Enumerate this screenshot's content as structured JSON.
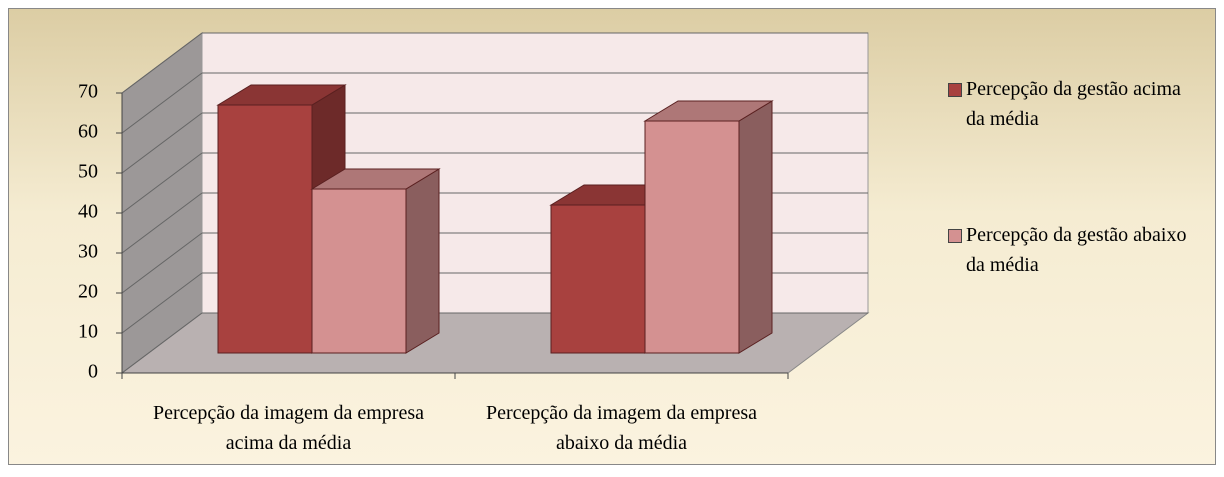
{
  "chart_data": {
    "type": "bar3d",
    "categories": [
      "Percepção da imagem da empresa acima da média",
      "Percepção da imagem da empresa abaixo da média"
    ],
    "series": [
      {
        "name": "Percepção da gestão acima da média",
        "color": "#a8413f",
        "values": [
          62,
          37
        ]
      },
      {
        "name": "Percepção da gestão abaixo da média",
        "color": "#d49191",
        "values": [
          41,
          58
        ]
      }
    ],
    "ylim": [
      0,
      70
    ],
    "yticks": [
      0,
      10,
      20,
      30,
      40,
      50,
      60,
      70
    ],
    "grid": true,
    "legend": "right"
  }
}
